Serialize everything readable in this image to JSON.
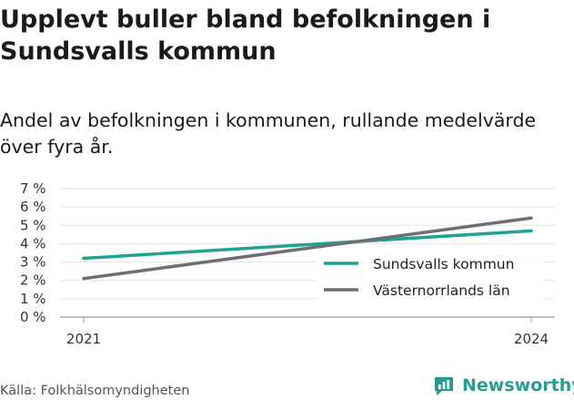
{
  "title": "Upplevt buller bland befolkningen i Sundsvalls kommun",
  "subtitle": "Andel av befolkningen i kommunen, rullande medelvärde över fyra år.",
  "source": "Källa: Folkhälsomyndigheten",
  "brand": "Newsworthy",
  "colors": {
    "brand": "#2a9b91",
    "grid": "#e3e3e3",
    "axis": "#999999"
  },
  "chart_data": {
    "type": "line",
    "x": [
      2021,
      2024
    ],
    "x_tick_labels": [
      "2021",
      "2024"
    ],
    "y_ticks": [
      0,
      1,
      2,
      3,
      4,
      5,
      6,
      7
    ],
    "y_tick_labels": [
      "0 %",
      "1 %",
      "2 %",
      "3 %",
      "4 %",
      "5 %",
      "6 %",
      "7 %"
    ],
    "ylim": [
      0,
      7
    ],
    "grid": true,
    "legend_position": "bottom-right",
    "series": [
      {
        "name": "Sundsvalls kommun",
        "color": "#1fa393",
        "values": [
          3.2,
          4.7
        ]
      },
      {
        "name": "Västernorrlands län",
        "color": "#6f6e76",
        "values": [
          2.1,
          5.4
        ]
      }
    ]
  }
}
